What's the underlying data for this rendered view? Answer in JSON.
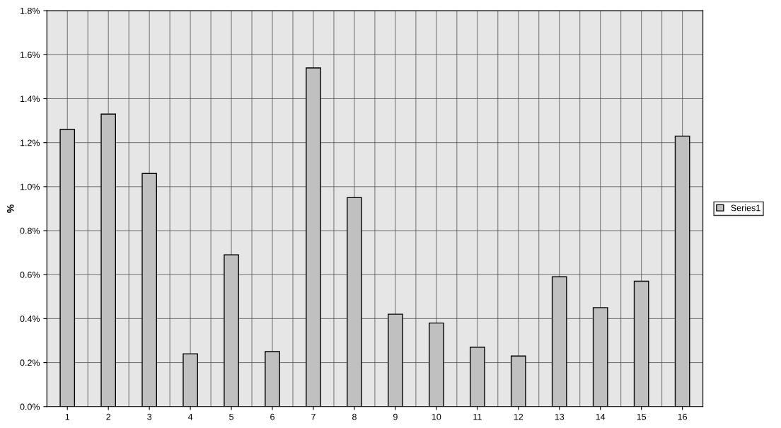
{
  "chart_data": {
    "type": "bar",
    "ylabel": "%",
    "categories": [
      "1",
      "2",
      "3",
      "4",
      "5",
      "6",
      "7",
      "8",
      "9",
      "10",
      "11",
      "12",
      "13",
      "14",
      "15",
      "16"
    ],
    "series": [
      {
        "name": "Series1",
        "color": "#c0c0c0",
        "values": [
          1.26,
          1.33,
          1.06,
          0.24,
          0.69,
          0.25,
          1.54,
          0.95,
          0.42,
          0.38,
          0.27,
          0.23,
          0.59,
          0.45,
          0.57,
          1.23
        ]
      }
    ],
    "ylim": [
      0,
      1.8
    ],
    "yticks": [
      {
        "value": 0,
        "label": "0.0%"
      },
      {
        "value": 0.2,
        "label": "0.2%"
      },
      {
        "value": 0.4,
        "label": "0.4%"
      },
      {
        "value": 0.6,
        "label": "0.6%"
      },
      {
        "value": 0.8,
        "label": "0.8%"
      },
      {
        "value": 1.0,
        "label": "1.0%"
      },
      {
        "value": 1.2,
        "label": "1.2%"
      },
      {
        "value": 1.4,
        "label": "1.4%"
      },
      {
        "value": 1.6,
        "label": "1.6%"
      },
      {
        "value": 1.8,
        "label": "1.8%"
      }
    ],
    "grid": true,
    "legend": "right"
  }
}
